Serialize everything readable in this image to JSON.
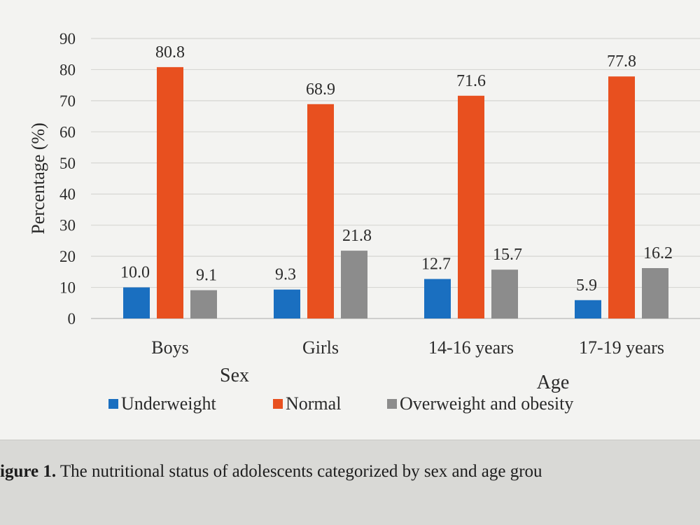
{
  "chart_data": {
    "type": "bar",
    "ylabel": "Percentage (%)",
    "ylim": [
      0,
      90
    ],
    "yticks": [
      0,
      10,
      20,
      30,
      40,
      50,
      60,
      70,
      80,
      90
    ],
    "grid": true,
    "groups": [
      {
        "label": "Sex",
        "categories": [
          "Boys",
          "Girls"
        ]
      },
      {
        "label": "Age",
        "categories": [
          "14-16 years",
          "17-19 years"
        ]
      }
    ],
    "categories": [
      "Boys",
      "Girls",
      "14-16 years",
      "17-19 years"
    ],
    "series": [
      {
        "name": "Underweight",
        "color": "#1a6fc0",
        "values": [
          10.0,
          9.3,
          12.7,
          5.9
        ],
        "labels": [
          "10.0",
          "9.3",
          "12.7",
          "5.9"
        ]
      },
      {
        "name": "Normal",
        "color": "#e8501f",
        "values": [
          80.8,
          68.9,
          71.6,
          77.8
        ],
        "labels": [
          "80.8",
          "68.9",
          "71.6",
          "77.8"
        ]
      },
      {
        "name": "Overweight and obesity",
        "color": "#8c8c8c",
        "values": [
          9.1,
          21.8,
          15.7,
          16.2
        ],
        "labels": [
          "9.1",
          "21.8",
          "15.7",
          "16.2"
        ]
      }
    ],
    "legend": "bottom"
  },
  "caption": {
    "prefix": "igure 1.",
    "text": " The nutritional status of adolescents categorized by sex and age grou"
  }
}
